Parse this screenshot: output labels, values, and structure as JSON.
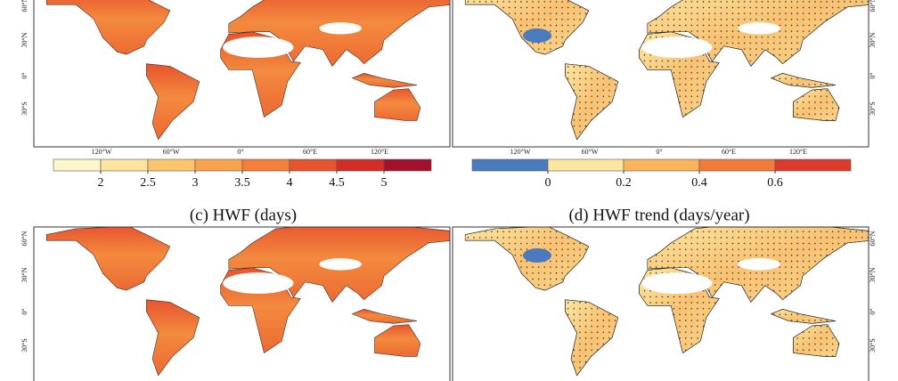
{
  "map_labels": {
    "lat": [
      "60°N",
      "30°N",
      "0°",
      "30°S"
    ],
    "lon": [
      "120°W",
      "60°W",
      "0°",
      "60°E",
      "120°E"
    ]
  },
  "colorbars": [
    {
      "lim": [
        1.5,
        5.5
      ],
      "ticks": [
        2,
        2.5,
        3,
        3.5,
        4,
        4.5,
        5
      ],
      "colors": [
        "#fdf6cc",
        "#fde49c",
        "#fdc56b",
        "#f9a24c",
        "#f47f3a",
        "#e8542e",
        "#d52c27",
        "#a3102b"
      ]
    },
    {
      "lim": [
        -0.2,
        0.8
      ],
      "ticks": [
        0,
        0.2,
        0.4,
        0.6
      ],
      "colors": [
        "#4a7bbf",
        "#fde6a0",
        "#f9b45c",
        "#f27a3a",
        "#dc3b2c"
      ]
    }
  ],
  "panel_titles": [
    "(c) HWF (days)",
    "(d) HWF trend (days/year)"
  ]
}
